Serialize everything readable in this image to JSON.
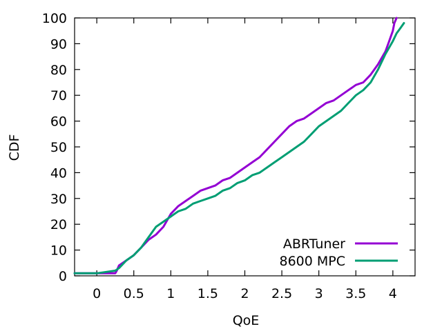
{
  "chart_data": {
    "type": "line",
    "xlabel": "QoE",
    "ylabel": "CDF",
    "xlim": [
      -0.3,
      4.3
    ],
    "ylim": [
      0,
      100
    ],
    "xticks": [
      0,
      0.5,
      1,
      1.5,
      2,
      2.5,
      3,
      3.5,
      4
    ],
    "xtick_labels": [
      "0",
      "0.5",
      "1",
      "1.5",
      "2",
      "2.5",
      "3",
      "3.5",
      "4"
    ],
    "yticks": [
      0,
      10,
      20,
      30,
      40,
      50,
      60,
      70,
      80,
      90,
      100
    ],
    "ytick_labels": [
      "0",
      "10",
      "20",
      "30",
      "40",
      "50",
      "60",
      "70",
      "80",
      "90",
      "100"
    ],
    "legend_position": "bottom-right",
    "grid": false,
    "series": [
      {
        "name": "ABRTuner",
        "color": "#9400D3",
        "x": [
          -0.3,
          0.25,
          0.27,
          0.3,
          0.4,
          0.5,
          0.6,
          0.7,
          0.8,
          0.9,
          1.0,
          1.1,
          1.2,
          1.3,
          1.4,
          1.5,
          1.6,
          1.7,
          1.8,
          1.9,
          2.0,
          2.1,
          2.2,
          2.3,
          2.4,
          2.5,
          2.6,
          2.7,
          2.8,
          2.9,
          3.0,
          3.1,
          3.2,
          3.3,
          3.4,
          3.5,
          3.6,
          3.7,
          3.8,
          3.9,
          3.95,
          4.0,
          4.02,
          4.05
        ],
        "y": [
          1,
          1,
          2,
          4,
          6,
          8,
          11,
          14,
          16,
          19,
          24,
          27,
          29,
          31,
          33,
          34,
          35,
          37,
          38,
          40,
          42,
          44,
          46,
          49,
          52,
          55,
          58,
          60,
          61,
          63,
          65,
          67,
          68,
          70,
          72,
          74,
          75,
          78,
          82,
          87,
          91,
          95,
          98,
          100
        ]
      },
      {
        "name": "8600 MPC",
        "color": "#009E73",
        "x": [
          -0.3,
          0.0,
          0.25,
          0.3,
          0.4,
          0.5,
          0.6,
          0.7,
          0.8,
          0.9,
          1.0,
          1.1,
          1.2,
          1.3,
          1.4,
          1.5,
          1.6,
          1.7,
          1.8,
          1.9,
          2.0,
          2.1,
          2.2,
          2.3,
          2.4,
          2.5,
          2.6,
          2.7,
          2.8,
          2.9,
          3.0,
          3.1,
          3.2,
          3.3,
          3.4,
          3.5,
          3.6,
          3.7,
          3.8,
          3.9,
          4.0,
          4.05,
          4.1,
          4.15
        ],
        "y": [
          1,
          1,
          2,
          3,
          6,
          8,
          11,
          15,
          19,
          21,
          23,
          25,
          26,
          28,
          29,
          30,
          31,
          33,
          34,
          36,
          37,
          39,
          40,
          42,
          44,
          46,
          48,
          50,
          52,
          55,
          58,
          60,
          62,
          64,
          67,
          70,
          72,
          75,
          80,
          86,
          91,
          94,
          96,
          98
        ]
      }
    ]
  }
}
